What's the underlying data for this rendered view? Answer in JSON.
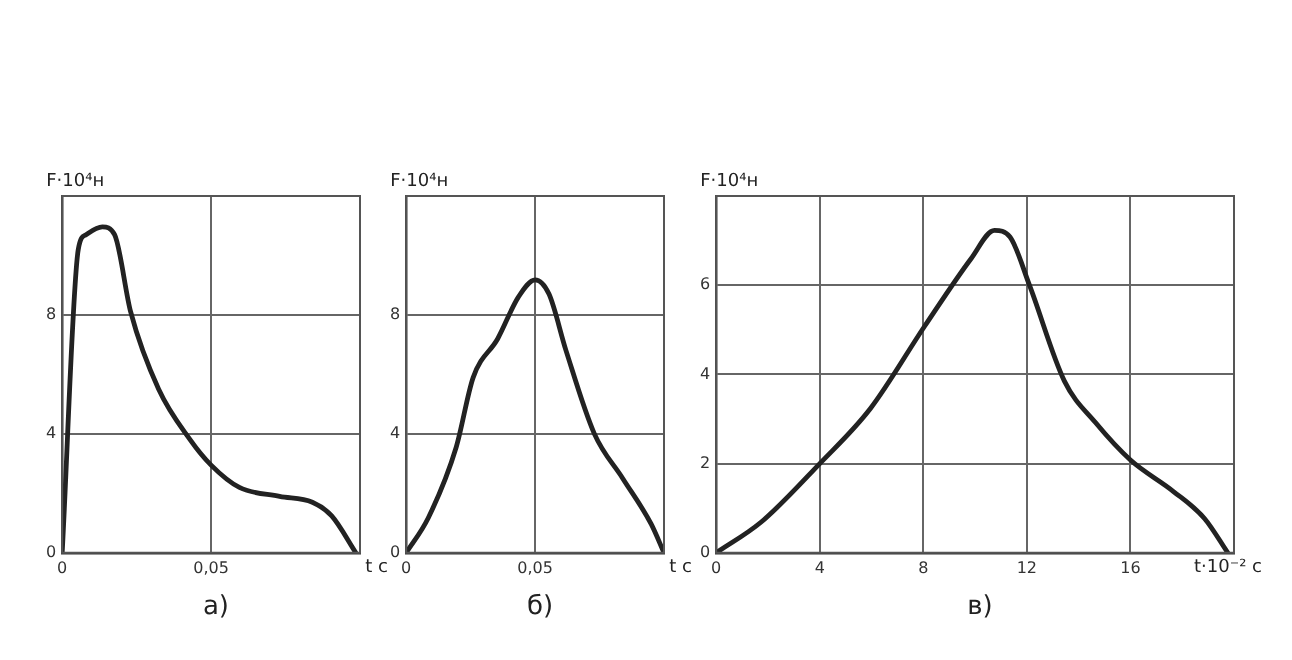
{
  "chart_data": [
    {
      "type": "line",
      "xlabel": "t с",
      "ylabel": "F·10⁴н",
      "annotations": [
        "а)"
      ],
      "grid": true,
      "marker": "none",
      "line_style": "solid",
      "legend": false,
      "xlim": [
        0,
        0.1
      ],
      "xticks": [
        0,
        {
          "value": 0.05,
          "label": "0,05"
        }
      ],
      "ylim": [
        0,
        12
      ],
      "yticks": [
        0,
        4,
        8
      ],
      "series": [
        {
          "color": "#222222",
          "x": [
            0,
            0.0054,
            0.008,
            0.0135,
            0.0176,
            0.023,
            0.0324,
            0.043,
            0.05,
            0.0595,
            0.073,
            0.084,
            0.0905,
            0.0986
          ],
          "values": [
            0,
            10.2,
            10.7,
            10.96,
            10.7,
            8.1,
            5.5,
            3.8,
            2.95,
            2.2,
            1.9,
            1.7,
            1.24,
            0
          ]
        }
      ]
    },
    {
      "type": "line",
      "xlabel": "t с",
      "ylabel": "F·10⁴н",
      "annotations": [
        "б)"
      ],
      "grid": true,
      "marker": "none",
      "line_style": "solid",
      "legend": false,
      "xlim": [
        0,
        0.1
      ],
      "xticks": [
        0,
        {
          "value": 0.05,
          "label": "0,05"
        }
      ],
      "ylim": [
        0,
        12
      ],
      "yticks": [
        0,
        4,
        8
      ],
      "series": [
        {
          "color": "#222222",
          "x": [
            0,
            0.0086,
            0.0194,
            0.026,
            0.0355,
            0.0435,
            0.05,
            0.0554,
            0.062,
            0.073,
            0.084,
            0.095,
            0.1
          ],
          "values": [
            0,
            1.18,
            3.55,
            5.9,
            7.2,
            8.6,
            9.18,
            8.7,
            6.8,
            4.0,
            2.5,
            0.97,
            0
          ]
        }
      ]
    },
    {
      "type": "line",
      "xlabel": "t·10⁻² с",
      "ylabel": "F·10⁴н",
      "annotations": [
        "в)"
      ],
      "grid": true,
      "marker": "none",
      "line_style": "solid",
      "legend": false,
      "xlim": [
        0,
        20
      ],
      "xticks": [
        0,
        4,
        8,
        12,
        16
      ],
      "ylim": [
        0,
        8
      ],
      "yticks": [
        0,
        2,
        4,
        6
      ],
      "series": [
        {
          "color": "#222222",
          "x": [
            0,
            1.74,
            4,
            5.95,
            8.05,
            9.85,
            10.75,
            11.35,
            12.1,
            13.45,
            14.65,
            16,
            17.65,
            18.86,
            19.76
          ],
          "values": [
            0,
            0.69,
            2,
            3.23,
            5.08,
            6.6,
            7.23,
            7.08,
            6.0,
            3.85,
            2.92,
            2.08,
            1.38,
            0.77,
            0
          ]
        }
      ]
    }
  ]
}
